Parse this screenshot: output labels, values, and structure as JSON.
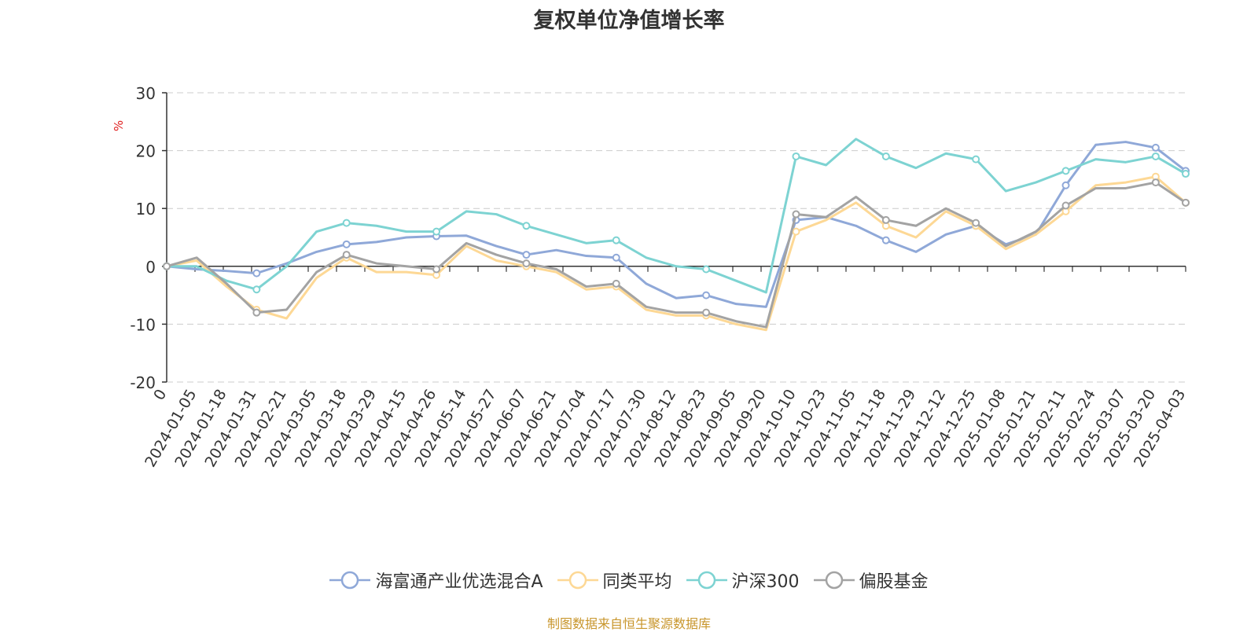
{
  "chart_data": {
    "type": "line",
    "title": "复权单位净值增长率",
    "ylabel": "%",
    "ylim": [
      -20,
      30
    ],
    "yticks": [
      -20,
      -10,
      0,
      10,
      20,
      30
    ],
    "grid": true,
    "legend_position": "bottom",
    "x_tick_labels": [
      "0",
      "2024-01-05",
      "2024-01-18",
      "2024-01-31",
      "2024-02-21",
      "2024-03-05",
      "2024-03-18",
      "2024-03-29",
      "2024-04-15",
      "2024-04-26",
      "2024-05-14",
      "2024-05-27",
      "2024-06-07",
      "2024-06-21",
      "2024-07-04",
      "2024-07-17",
      "2024-07-30",
      "2024-08-12",
      "2024-08-23",
      "2024-09-05",
      "2024-09-20",
      "2024-10-10",
      "2024-10-23",
      "2024-11-05",
      "2024-11-18",
      "2024-11-29",
      "2024-12-12",
      "2024-12-25",
      "2025-01-08",
      "2025-01-21",
      "2025-02-11",
      "2025-02-24",
      "2025-03-07",
      "2025-03-20",
      "2025-04-03"
    ],
    "x": [
      "0",
      "2024-01-05",
      "2024-01-18",
      "2024-01-31",
      "2024-02-21",
      "2024-03-05",
      "2024-03-18",
      "2024-03-29",
      "2024-04-15",
      "2024-04-26",
      "2024-05-14",
      "2024-05-27",
      "2024-06-07",
      "2024-06-21",
      "2024-07-04",
      "2024-07-17",
      "2024-07-30",
      "2024-08-12",
      "2024-08-23",
      "2024-09-05",
      "2024-09-20",
      "2024-10-10",
      "2024-10-23",
      "2024-11-05",
      "2024-11-18",
      "2024-11-29",
      "2024-12-12",
      "2024-12-25",
      "2025-01-08",
      "2025-01-21",
      "2025-02-11",
      "2025-02-24",
      "2025-03-07",
      "2025-03-20",
      "2025-04-03"
    ],
    "series": [
      {
        "name": "海富通产业优选混合A",
        "color": "#8fa8d8",
        "values": [
          0,
          -0.5,
          -0.8,
          -1.2,
          0.5,
          2.5,
          3.8,
          4.2,
          5.0,
          5.2,
          5.3,
          3.5,
          2.0,
          2.8,
          1.8,
          1.5,
          -3.0,
          -5.5,
          -5.0,
          -6.5,
          -7.0,
          8.0,
          8.5,
          7.0,
          4.5,
          2.5,
          5.5,
          7.0,
          3.8,
          5.5,
          14.0,
          21.0,
          21.5,
          20.5,
          16.5
        ]
      },
      {
        "name": "同类平均",
        "color": "#fdd895",
        "values": [
          0,
          1.0,
          -3.5,
          -7.5,
          -9.0,
          -2.0,
          1.5,
          -1.0,
          -1.0,
          -1.5,
          3.5,
          1.0,
          0.0,
          -1.0,
          -4.0,
          -3.5,
          -7.5,
          -8.5,
          -8.5,
          -10.0,
          -11.0,
          6.0,
          8.0,
          11.0,
          7.0,
          5.0,
          9.5,
          7.0,
          3.0,
          5.5,
          9.5,
          14.0,
          14.5,
          15.5,
          11.0
        ]
      },
      {
        "name": "沪深300",
        "color": "#7dd3d2",
        "values": [
          0,
          0.0,
          -2.5,
          -4.0,
          0.0,
          6.0,
          7.5,
          7.0,
          6.0,
          6.0,
          9.5,
          9.0,
          7.0,
          5.5,
          4.0,
          4.5,
          1.5,
          0.0,
          -0.5,
          -2.5,
          -4.5,
          19.0,
          17.5,
          22.0,
          19.0,
          17.0,
          19.5,
          18.5,
          13.0,
          14.5,
          16.5,
          18.5,
          18.0,
          19.0,
          16.0
        ]
      },
      {
        "name": "偏股基金",
        "color": "#a3a3a3",
        "values": [
          0,
          1.5,
          -3.0,
          -8.0,
          -7.5,
          -1.0,
          2.0,
          0.5,
          0.0,
          -0.5,
          4.0,
          2.0,
          0.5,
          -0.5,
          -3.5,
          -3.0,
          -7.0,
          -8.0,
          -8.0,
          -9.5,
          -10.5,
          9.0,
          8.5,
          12.0,
          8.0,
          7.0,
          10.0,
          7.5,
          3.5,
          6.0,
          10.5,
          13.5,
          13.5,
          14.5,
          11.0
        ]
      }
    ]
  },
  "source_note": "制图数据来自恒生聚源数据库"
}
